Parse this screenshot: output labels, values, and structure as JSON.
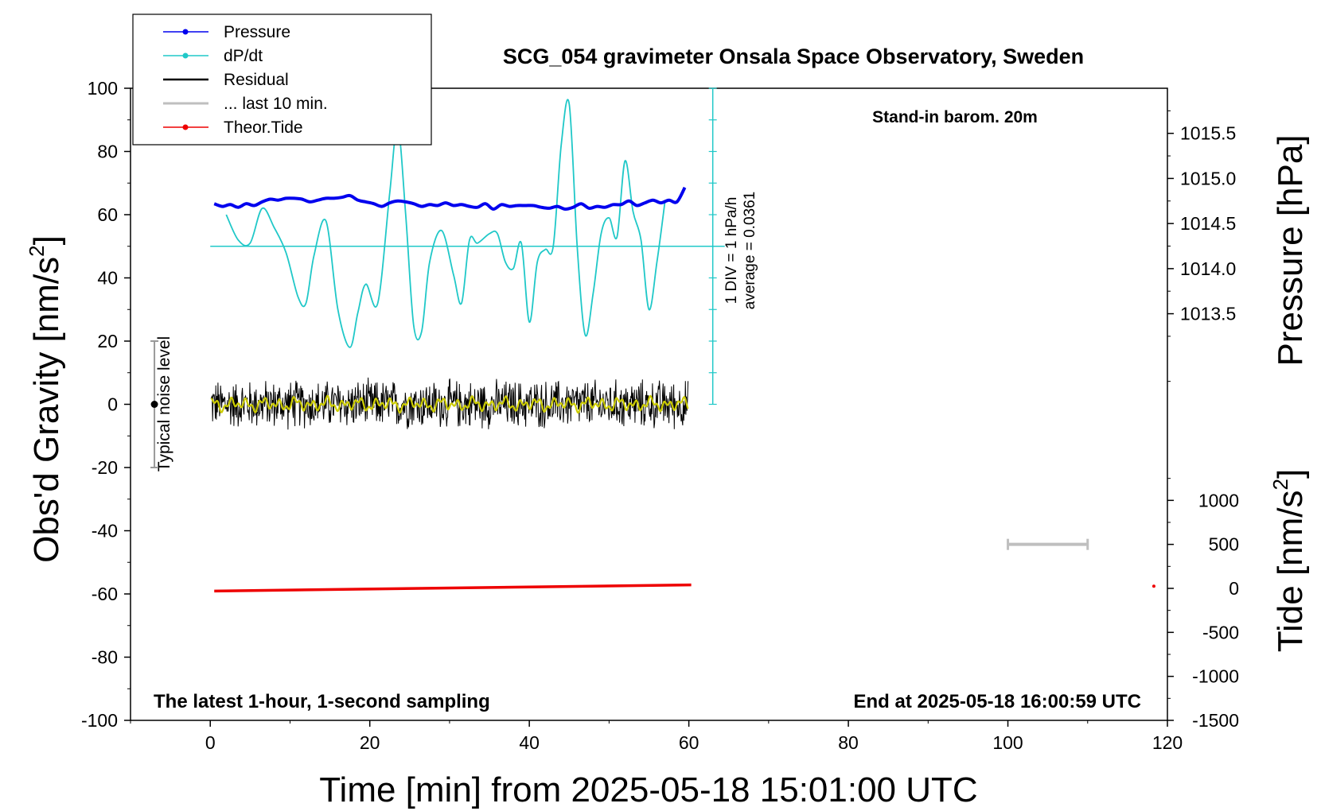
{
  "chart_data": {
    "type": "line",
    "title": "SCG_054 gravimeter Onsala Space Observatory, Sweden",
    "xlabel": "Time [min] from 2025-05-18 15:01:00 UTC",
    "ylabel_left": "Obs'd Gravity [nm/s",
    "ylabel_left_sup": "2",
    "ylabel_left_close": "]",
    "ylabel_right_pressure": "Pressure [hPa]",
    "ylabel_right_tide": "Tide [nm/s",
    "ylabel_right_tide_sup": "2",
    "ylabel_right_tide_close": "]",
    "xlim": [
      -10,
      120
    ],
    "ylim": [
      -100,
      100
    ],
    "pressure_lim": [
      1012.5,
      1016.0
    ],
    "tide_lim": [
      -1500,
      1500
    ],
    "x_ticks": [
      0,
      20,
      40,
      60,
      80,
      100,
      120
    ],
    "x_tick_labels": [
      "0",
      "20",
      "40",
      "60",
      "80",
      "100",
      "120"
    ],
    "y_ticks": [
      100,
      80,
      60,
      40,
      20,
      0,
      -20,
      -40,
      -60,
      -80,
      -100
    ],
    "y_tick_labels": [
      "100",
      "80",
      "60",
      "40",
      "20",
      "0",
      "-20",
      "-40",
      "-60",
      "-80",
      "-100"
    ],
    "pressure_ticks": [
      1015.5,
      1015.0,
      1014.5,
      1014.0,
      1013.5
    ],
    "pressure_tick_labels": [
      "1015.5",
      "1015.0",
      "1014.5",
      "1014.0",
      "1013.5"
    ],
    "tide_ticks": [
      1000,
      500,
      0,
      -500,
      -1000,
      -1500
    ],
    "tide_tick_labels": [
      "1000",
      "500",
      "0",
      "-500",
      "-1000",
      "-1500"
    ],
    "annotations": {
      "barometer": "Stand-in barom. 20m",
      "sampling": "The latest 1-hour, 1-second sampling",
      "end_time": "End at 2025-05-18 16:00:59 UTC",
      "noise_level": "Typical noise level",
      "dpdt_scale": "1 DIV = 1 hPa/h",
      "dpdt_average": "average = 0.0361"
    },
    "legend": {
      "placement": "top-left",
      "entries": [
        "Pressure",
        "dP/dt",
        "Residual",
        "... last 10 min.",
        "Theor.Tide"
      ]
    },
    "colors": {
      "pressure": "#0000ee",
      "dpdt": "#20c8c8",
      "residual": "#000000",
      "smoothed": "#cccc00",
      "last10": "#bfbfbf",
      "tide": "#ee0000"
    },
    "series": [
      {
        "name": "Pressure",
        "units": "hPa",
        "x": [
          0.5,
          1.5,
          2.5,
          3.5,
          4.5,
          5.5,
          6.5,
          7.5,
          8.5,
          9.5,
          10.5,
          11.5,
          12.5,
          13.5,
          14.5,
          15.5,
          16.5,
          17.5,
          18.5,
          19.5,
          20.5,
          21.5,
          22.5,
          23.5,
          24.5,
          25.5,
          26.5,
          27.5,
          28.5,
          29.5,
          30.5,
          31.5,
          32.5,
          33.5,
          34.5,
          35.5,
          36.5,
          37.5,
          38.5,
          39.5,
          40.5,
          41.5,
          42.5,
          43.5,
          44.5,
          45.5,
          46.5,
          47.5,
          48.5,
          49.5,
          50.5,
          51.5,
          52.5,
          53.5,
          54.5,
          55.5,
          56.5,
          57.5,
          58.5,
          59.5
        ],
        "values": [
          1014.72,
          1014.69,
          1014.71,
          1014.68,
          1014.72,
          1014.7,
          1014.74,
          1014.77,
          1014.76,
          1014.78,
          1014.78,
          1014.77,
          1014.74,
          1014.76,
          1014.78,
          1014.78,
          1014.79,
          1014.81,
          1014.76,
          1014.74,
          1014.72,
          1014.69,
          1014.73,
          1014.75,
          1014.74,
          1014.72,
          1014.69,
          1014.71,
          1014.7,
          1014.73,
          1014.7,
          1014.71,
          1014.69,
          1014.68,
          1014.72,
          1014.66,
          1014.71,
          1014.69,
          1014.7,
          1014.7,
          1014.7,
          1014.68,
          1014.67,
          1014.69,
          1014.66,
          1014.68,
          1014.72,
          1014.67,
          1014.69,
          1014.68,
          1014.71,
          1014.71,
          1014.75,
          1014.7,
          1014.73,
          1014.76,
          1014.73,
          1014.76,
          1014.74,
          1014.9
        ]
      },
      {
        "name": "dP/dt",
        "units": "hPa/h",
        "x": [
          2.0,
          3.5,
          5.0,
          6.5,
          8.0,
          9.5,
          11.0,
          12.0,
          13.0,
          14.5,
          16.0,
          17.5,
          18.5,
          19.5,
          21.0,
          22.5,
          23.5,
          24.5,
          25.5,
          26.5,
          27.5,
          29.0,
          30.5,
          31.5,
          32.5,
          33.5,
          35.0,
          36.0,
          37.0,
          38.0,
          39.0,
          40.0,
          41.0,
          42.0,
          43.0,
          44.0,
          45.0,
          46.0,
          47.0,
          48.0,
          49.0,
          50.0,
          51.0,
          52.0,
          53.0,
          54.0,
          55.0,
          56.0,
          57.0
        ],
        "values": [
          1.0,
          0.2,
          0.1,
          1.2,
          0.6,
          -0.2,
          -1.6,
          -1.8,
          -0.3,
          0.8,
          -2.0,
          -3.2,
          -2.1,
          -1.2,
          -1.8,
          1.7,
          3.8,
          1.0,
          -2.5,
          -2.7,
          -0.5,
          0.5,
          -0.9,
          -1.8,
          0.2,
          0.1,
          0.4,
          0.4,
          -0.5,
          -0.7,
          0.1,
          -2.4,
          -0.5,
          -0.1,
          0.0,
          3.2,
          4.5,
          0.0,
          -2.8,
          -1.5,
          0.4,
          0.9,
          0.3,
          2.7,
          1.1,
          0.2,
          -2.0,
          -0.5,
          1.4
        ]
      },
      {
        "name": "Residual",
        "units": "nm/s2",
        "x_range": [
          0.1,
          59.9
        ],
        "typical_amplitude": 8,
        "smoothed_amplitude": 2
      },
      {
        "name": "... last 10 min.",
        "units": "nm/s2",
        "x_range": [
          100,
          110
        ],
        "tide_value": 500
      },
      {
        "name": "Theor.Tide",
        "units": "nm/s2",
        "x": [
          0.5,
          60.3
        ],
        "values": [
          -30,
          40
        ],
        "extra_point": {
          "x": 118.3,
          "value": 25
        }
      }
    ],
    "noise_bar": {
      "x": -7,
      "center": 0,
      "half_range": 20
    }
  }
}
